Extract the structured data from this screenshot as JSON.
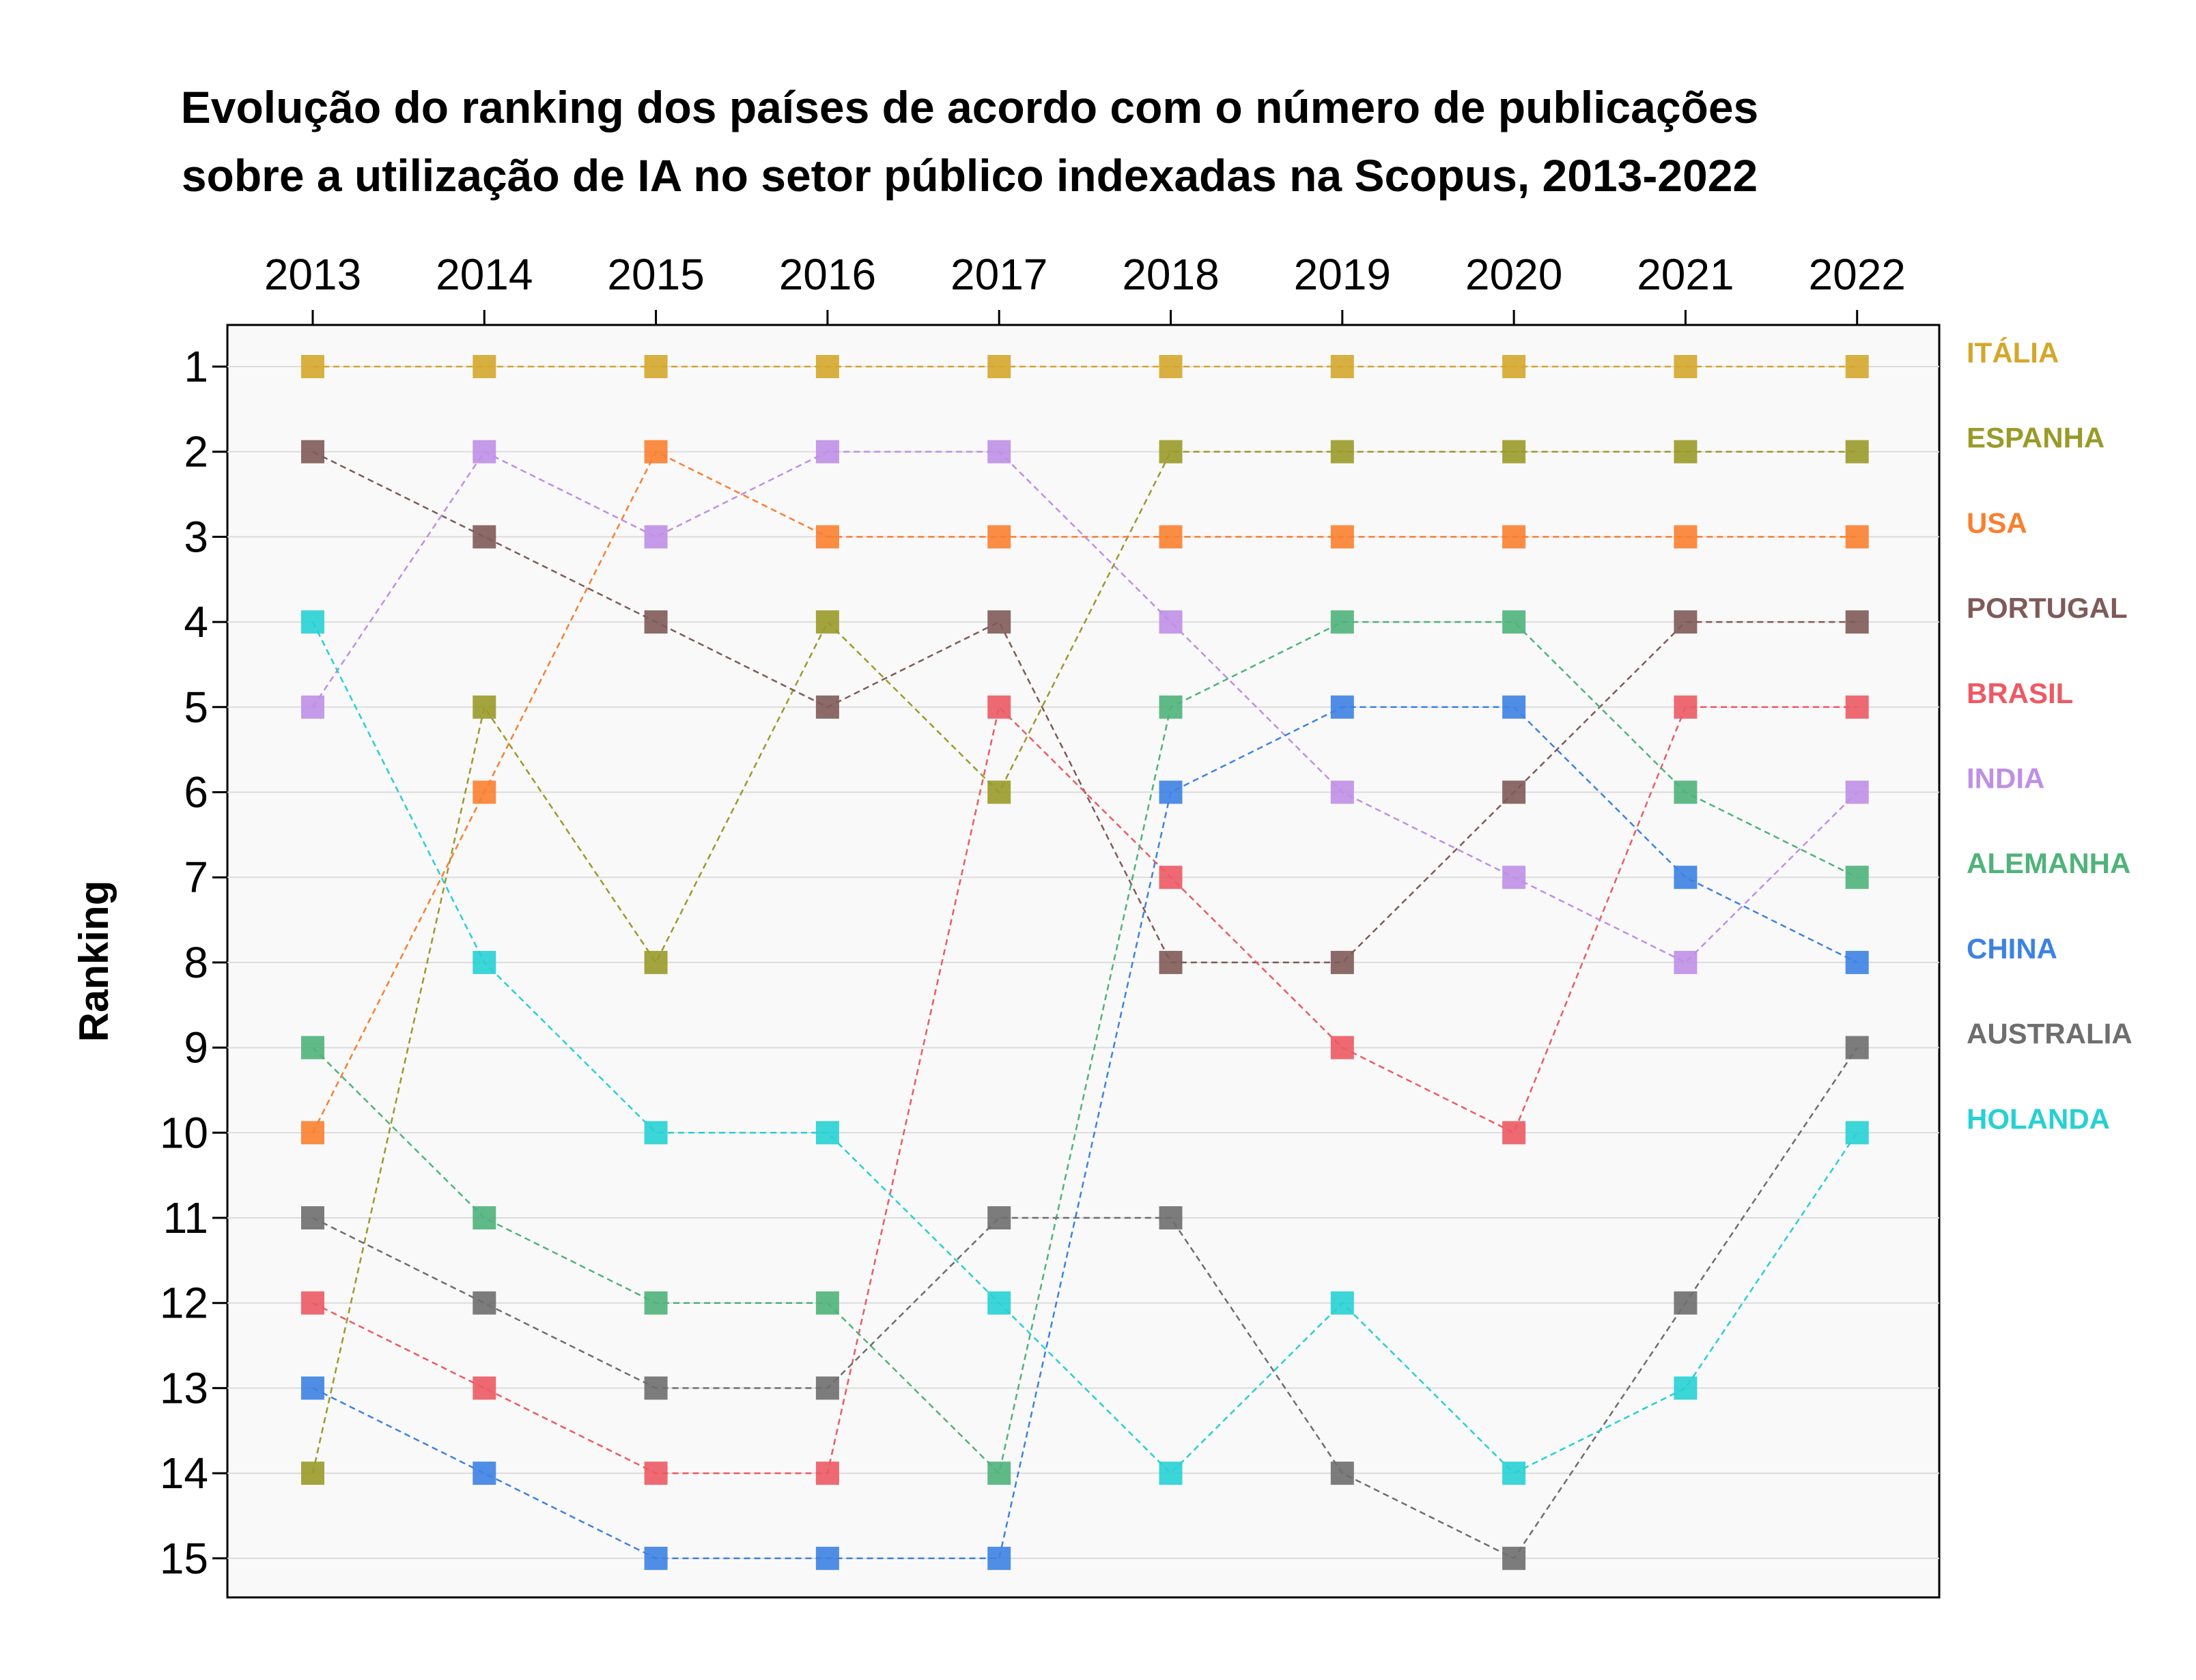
{
  "chart_data": {
    "type": "line",
    "title_lines": [
      "Evolução do ranking dos países de acordo com o número de publicações",
      "sobre a utilização de IA no setor público indexadas na Scopus, 2013-2022"
    ],
    "xlabel": "",
    "ylabel": "Ranking",
    "x": [
      "2013",
      "2014",
      "2015",
      "2016",
      "2017",
      "2018",
      "2019",
      "2020",
      "2021",
      "2022"
    ],
    "y_ticks": [
      "1",
      "2",
      "3",
      "4",
      "5",
      "6",
      "7",
      "8",
      "9",
      "10",
      "11",
      "12",
      "13",
      "14",
      "15"
    ],
    "ylim": [
      1,
      15
    ],
    "y_inverted": true,
    "x_axis_position": "top",
    "grid": "horizontal",
    "legend_position": "right",
    "marker": "square",
    "line_style": "dashed",
    "series": [
      {
        "name": "ITÁLIA",
        "color": "#d4a72c",
        "values": [
          1,
          1,
          1,
          1,
          1,
          1,
          1,
          1,
          1,
          1
        ]
      },
      {
        "name": "ESPANHA",
        "color": "#9a9a2a",
        "values": [
          14,
          5,
          8,
          4,
          6,
          2,
          2,
          2,
          2,
          2
        ]
      },
      {
        "name": "USA",
        "color": "#f97f2f",
        "values": [
          10,
          6,
          2,
          3,
          3,
          3,
          3,
          3,
          3,
          3
        ]
      },
      {
        "name": "PORTUGAL",
        "color": "#7f5a58",
        "values": [
          2,
          3,
          4,
          5,
          4,
          8,
          8,
          6,
          4,
          4
        ]
      },
      {
        "name": "BRASIL",
        "color": "#ec5a64",
        "values": [
          12,
          13,
          14,
          14,
          5,
          7,
          9,
          10,
          5,
          5
        ]
      },
      {
        "name": "INDIA",
        "color": "#bf8fe6",
        "values": [
          5,
          2,
          3,
          2,
          2,
          4,
          6,
          7,
          8,
          6
        ]
      },
      {
        "name": "ALEMANHA",
        "color": "#4fb37a",
        "values": [
          9,
          11,
          12,
          12,
          14,
          5,
          4,
          4,
          6,
          7
        ]
      },
      {
        "name": "CHINA",
        "color": "#3d82e3",
        "values": [
          13,
          14,
          15,
          15,
          15,
          6,
          5,
          5,
          7,
          8
        ]
      },
      {
        "name": "AUSTRALIA",
        "color": "#6e6e6e",
        "values": [
          11,
          12,
          13,
          13,
          11,
          11,
          14,
          15,
          12,
          9
        ]
      },
      {
        "name": "HOLANDA",
        "color": "#27d0d4",
        "values": [
          4,
          8,
          10,
          10,
          12,
          14,
          12,
          14,
          13,
          10
        ]
      }
    ]
  }
}
